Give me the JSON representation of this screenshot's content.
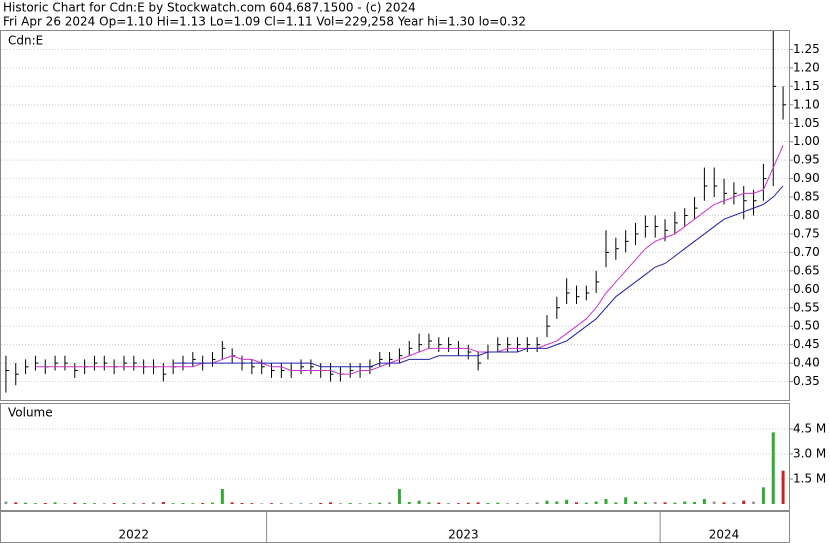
{
  "header": {
    "title": "Historic Chart for Cdn:E by Stockwatch.com 604.687.1500 - (c) 2024",
    "subtitle": "Fri Apr 26 2024  Op=1.10  Hi=1.13  Lo=1.09  Cl=1.11  Vol=229,258  Year hi=1.30  lo=0.32"
  },
  "chart_data": [
    {
      "type": "ohlc",
      "label": "Cdn:E",
      "color": "#000000",
      "grid": true,
      "categories": [
        "2022",
        null,
        null,
        null,
        null,
        null,
        null,
        null,
        null,
        null,
        null,
        null,
        null,
        null,
        null,
        null,
        null,
        null,
        null,
        null,
        null,
        null,
        null,
        null,
        null,
        null,
        null,
        "2023",
        null,
        null,
        null,
        null,
        null,
        null,
        null,
        null,
        null,
        null,
        null,
        null,
        null,
        null,
        null,
        null,
        null,
        null,
        null,
        null,
        null,
        null,
        null,
        null,
        null,
        null,
        null,
        null,
        null,
        null,
        null,
        null,
        null,
        null,
        null,
        null,
        null,
        null,
        null,
        "2024",
        null,
        null,
        null,
        null,
        null,
        null,
        null,
        null,
        null,
        null,
        null,
        null
      ],
      "high": [
        0.42,
        0.4,
        0.41,
        0.42,
        0.41,
        0.42,
        0.42,
        0.4,
        0.41,
        0.42,
        0.42,
        0.41,
        0.42,
        0.42,
        0.41,
        0.41,
        0.4,
        0.41,
        0.42,
        0.43,
        0.42,
        0.43,
        0.46,
        0.44,
        0.42,
        0.41,
        0.41,
        0.4,
        0.4,
        0.4,
        0.41,
        0.41,
        0.4,
        0.4,
        0.39,
        0.4,
        0.4,
        0.41,
        0.43,
        0.43,
        0.44,
        0.46,
        0.48,
        0.48,
        0.47,
        0.47,
        0.46,
        0.45,
        0.43,
        0.45,
        0.47,
        0.47,
        0.47,
        0.47,
        0.47,
        0.53,
        0.58,
        0.63,
        0.61,
        0.61,
        0.65,
        0.76,
        0.74,
        0.76,
        0.78,
        0.8,
        0.8,
        0.79,
        0.81,
        0.82,
        0.85,
        0.93,
        0.93,
        0.9,
        0.89,
        0.88,
        0.87,
        0.94,
        1.3,
        1.15
      ],
      "low": [
        0.32,
        0.34,
        0.37,
        0.38,
        0.37,
        0.38,
        0.38,
        0.36,
        0.37,
        0.38,
        0.38,
        0.37,
        0.38,
        0.38,
        0.37,
        0.37,
        0.35,
        0.37,
        0.38,
        0.39,
        0.38,
        0.39,
        0.41,
        0.4,
        0.38,
        0.37,
        0.37,
        0.36,
        0.36,
        0.36,
        0.37,
        0.37,
        0.36,
        0.35,
        0.35,
        0.36,
        0.36,
        0.37,
        0.39,
        0.39,
        0.4,
        0.42,
        0.43,
        0.44,
        0.43,
        0.43,
        0.42,
        0.41,
        0.38,
        0.41,
        0.43,
        0.43,
        0.43,
        0.43,
        0.43,
        0.47,
        0.52,
        0.56,
        0.56,
        0.57,
        0.59,
        0.66,
        0.68,
        0.7,
        0.72,
        0.74,
        0.74,
        0.73,
        0.75,
        0.77,
        0.79,
        0.84,
        0.85,
        0.83,
        0.83,
        0.79,
        0.8,
        0.84,
        0.88,
        1.06
      ],
      "close": [
        0.38,
        0.37,
        0.39,
        0.4,
        0.39,
        0.4,
        0.4,
        0.38,
        0.39,
        0.4,
        0.4,
        0.39,
        0.4,
        0.4,
        0.39,
        0.39,
        0.37,
        0.39,
        0.4,
        0.41,
        0.4,
        0.41,
        0.44,
        0.42,
        0.4,
        0.39,
        0.39,
        0.38,
        0.38,
        0.38,
        0.39,
        0.39,
        0.38,
        0.37,
        0.37,
        0.38,
        0.38,
        0.39,
        0.41,
        0.41,
        0.42,
        0.44,
        0.45,
        0.46,
        0.45,
        0.45,
        0.44,
        0.43,
        0.4,
        0.43,
        0.45,
        0.45,
        0.45,
        0.45,
        0.45,
        0.5,
        0.55,
        0.59,
        0.58,
        0.59,
        0.62,
        0.7,
        0.71,
        0.73,
        0.75,
        0.77,
        0.77,
        0.76,
        0.78,
        0.8,
        0.82,
        0.88,
        0.88,
        0.86,
        0.86,
        0.84,
        0.84,
        0.9,
        1.15,
        1.1
      ],
      "series": [
        {
          "color": "#cc33cc",
          "values": [
            null,
            null,
            null,
            0.39,
            0.39,
            0.39,
            0.39,
            0.39,
            0.39,
            0.39,
            0.39,
            0.39,
            0.39,
            0.39,
            0.39,
            0.39,
            0.39,
            0.39,
            0.39,
            0.39,
            0.4,
            0.4,
            0.41,
            0.42,
            0.41,
            0.41,
            0.4,
            0.39,
            0.39,
            0.38,
            0.38,
            0.38,
            0.38,
            0.38,
            0.37,
            0.37,
            0.38,
            0.38,
            0.39,
            0.4,
            0.41,
            0.42,
            0.43,
            0.44,
            0.44,
            0.44,
            0.44,
            0.44,
            0.43,
            0.43,
            0.43,
            0.44,
            0.44,
            0.44,
            0.44,
            0.45,
            0.46,
            0.48,
            0.5,
            0.52,
            0.55,
            0.59,
            0.62,
            0.65,
            0.68,
            0.71,
            0.73,
            0.74,
            0.75,
            0.77,
            0.79,
            0.81,
            0.83,
            0.84,
            0.85,
            0.86,
            0.86,
            0.87,
            0.93,
            0.99
          ]
        },
        {
          "color": "#2222aa",
          "values": [
            null,
            null,
            null,
            null,
            null,
            null,
            null,
            null,
            null,
            null,
            null,
            null,
            null,
            null,
            null,
            null,
            null,
            0.4,
            0.4,
            0.4,
            0.4,
            0.4,
            0.4,
            0.4,
            0.4,
            0.4,
            0.4,
            0.4,
            0.4,
            0.4,
            0.4,
            0.4,
            0.39,
            0.39,
            0.39,
            0.39,
            0.39,
            0.39,
            0.4,
            0.4,
            0.4,
            0.41,
            0.41,
            0.41,
            0.42,
            0.42,
            0.42,
            0.42,
            0.42,
            0.43,
            0.43,
            0.43,
            0.43,
            0.44,
            0.44,
            0.44,
            0.45,
            0.46,
            0.48,
            0.5,
            0.52,
            0.55,
            0.58,
            0.6,
            0.62,
            0.64,
            0.66,
            0.67,
            0.69,
            0.71,
            0.73,
            0.75,
            0.77,
            0.79,
            0.8,
            0.81,
            0.82,
            0.83,
            0.85,
            0.88
          ]
        }
      ],
      "ylim": [
        0.3,
        1.3
      ],
      "yticks": [
        0.35,
        {
          "value": 0.4,
          "label": "0.40"
        },
        0.45,
        {
          "value": 0.5,
          "label": "0.50"
        },
        0.55,
        {
          "value": 0.6,
          "label": "0.60"
        },
        0.65,
        {
          "value": 0.7,
          "label": "0.70"
        },
        0.75,
        {
          "value": 0.8,
          "label": "0.80"
        },
        0.85,
        {
          "value": 0.9,
          "label": "0.90"
        },
        0.95,
        {
          "value": 1.0,
          "label": "1.00"
        },
        1.05,
        {
          "value": 1.1,
          "label": "1.10"
        },
        1.15,
        {
          "value": 1.2,
          "label": "1.20"
        },
        1.25
      ]
    },
    {
      "type": "volume",
      "label": "Volume",
      "up_color": "#33aa33",
      "down_color": "#cc2222",
      "flat_color": "#999999",
      "grid": true,
      "values": [
        0.15,
        0.1,
        0.08,
        0.05,
        0.06,
        0.1,
        0.05,
        0.08,
        0.06,
        0.05,
        0.05,
        0.06,
        0.05,
        0.08,
        0.05,
        0.1,
        0.12,
        0.05,
        0.06,
        0.05,
        0.06,
        0.08,
        0.9,
        0.1,
        0.06,
        0.05,
        0.04,
        0.05,
        0.06,
        0.05,
        0.04,
        0.05,
        0.06,
        0.1,
        0.05,
        0.06,
        0.05,
        0.05,
        0.08,
        0.1,
        0.9,
        0.12,
        0.2,
        0.1,
        0.08,
        0.06,
        0.05,
        0.08,
        0.1,
        0.06,
        0.08,
        0.05,
        0.06,
        0.05,
        0.1,
        0.2,
        0.15,
        0.25,
        0.1,
        0.08,
        0.15,
        0.3,
        0.1,
        0.4,
        0.15,
        0.1,
        0.12,
        0.1,
        0.08,
        0.15,
        0.12,
        0.3,
        0.15,
        0.1,
        0.08,
        0.2,
        0.15,
        1.0,
        4.3,
        2.0
      ],
      "ylim": [
        0,
        6
      ],
      "yticks": [
        {
          "value": 1.5,
          "label": "1.5 M"
        },
        {
          "value": 3,
          "label": "3.0 M"
        },
        {
          "value": 4.5,
          "label": "4.5 M"
        }
      ]
    }
  ]
}
